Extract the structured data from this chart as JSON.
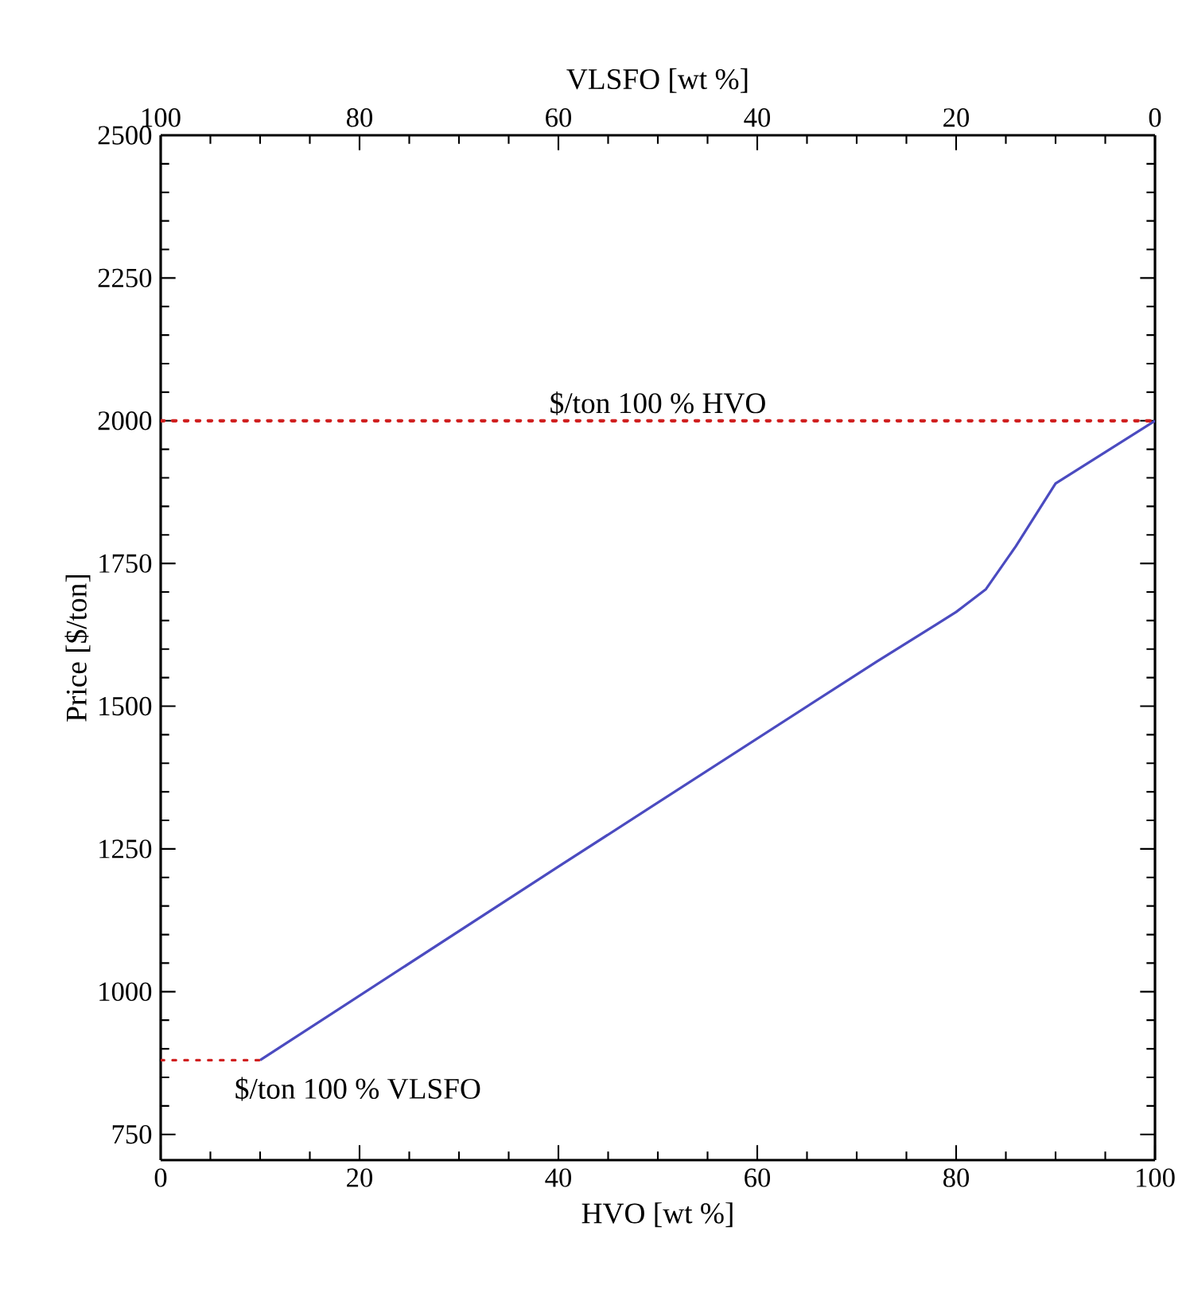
{
  "chart_data": {
    "type": "line",
    "xlabel": "HVO [wt %]",
    "x2label": "VLSFO [wt %]",
    "ylabel": "Price [$/ton]",
    "xlim": [
      0,
      100
    ],
    "xticks": [
      0,
      20,
      40,
      60,
      80,
      100
    ],
    "x2lim": [
      100,
      0
    ],
    "x2ticks": [
      100,
      80,
      60,
      40,
      20,
      0
    ],
    "ylim": [
      705,
      2500
    ],
    "yticks": [
      750,
      1000,
      1250,
      1500,
      1750,
      2000,
      2250,
      2500
    ],
    "marker": "none",
    "series": [
      {
        "color": "#4b4bc0",
        "line_style": "solid",
        "x": [
          10,
          40,
          72,
          78,
          80,
          83,
          86,
          90,
          100
        ],
        "values": [
          880,
          1219,
          1578,
          1643,
          1665,
          1705,
          1780,
          1890,
          2000
        ]
      },
      {
        "color": "#d02020",
        "line_style": "dotted",
        "x": [
          0,
          10
        ],
        "values": [
          880,
          880
        ]
      }
    ],
    "ref_lines": [
      {
        "axis": "y",
        "value": 2000,
        "label": "$/ton 100 % HVO",
        "color": "#d02020",
        "line_style": "dotted"
      }
    ],
    "annotations": [
      {
        "text": "$/ton 100 % VLSFO",
        "x": 10,
        "y": 880
      }
    ]
  }
}
